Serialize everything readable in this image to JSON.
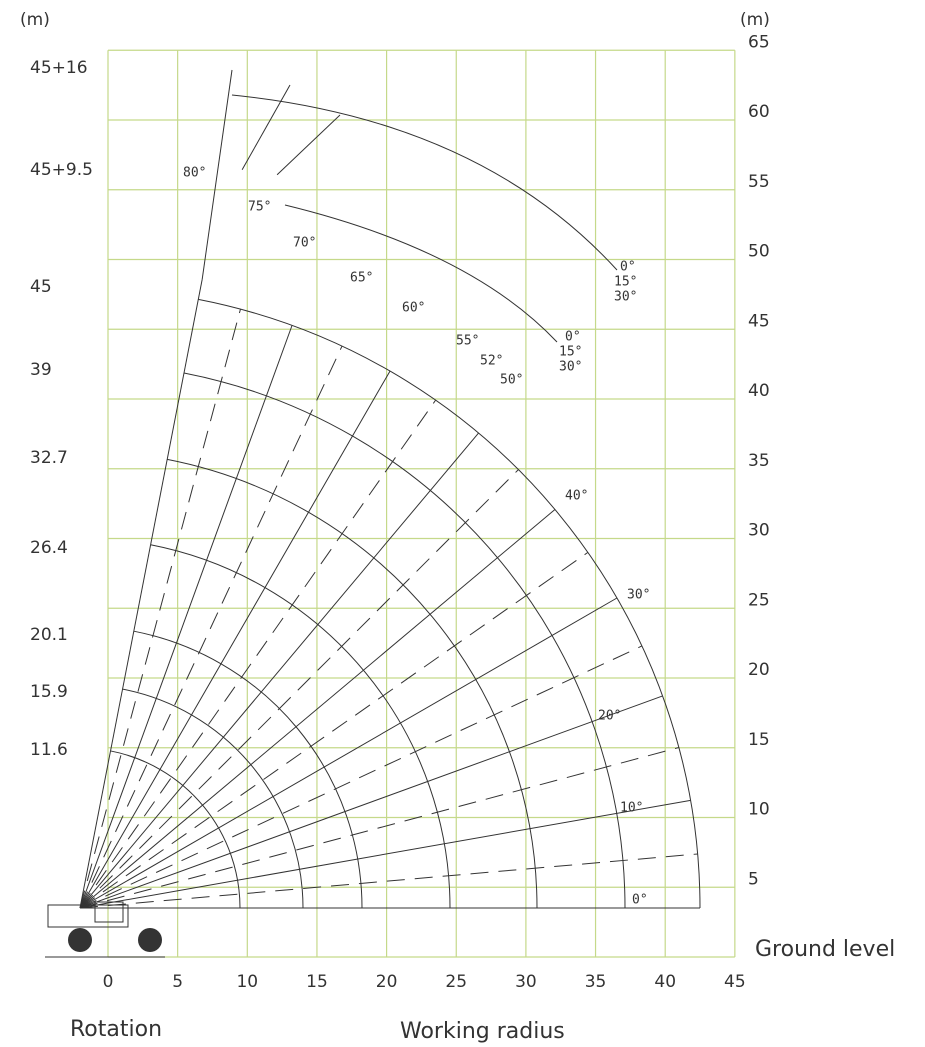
{
  "units": {
    "left": "(m)",
    "right": "(m)"
  },
  "x_axis": {
    "ticks": [
      0,
      5,
      10,
      15,
      20,
      25,
      30,
      35,
      40,
      45
    ],
    "title": "Working radius"
  },
  "y_axis": {
    "ticks": [
      5,
      10,
      15,
      20,
      25,
      30,
      35,
      40,
      45,
      50,
      55,
      60,
      65
    ],
    "ground_label": "Ground level"
  },
  "rotation_label": "Rotation",
  "boom_lengths": [
    "45+16",
    "45+9.5",
    "45",
    "39",
    "32.7",
    "26.4",
    "20.1",
    "15.9",
    "11.6"
  ],
  "boom_angles": [
    "0°",
    "10°",
    "20°",
    "30°",
    "40°"
  ],
  "jib_angles": [
    "80°",
    "75°",
    "70°",
    "65°",
    "60°",
    "55°",
    "52°",
    "50°"
  ],
  "jib_offsets_upper": [
    "0°",
    "15°",
    "30°"
  ],
  "jib_offsets_lower": [
    "0°",
    "15°",
    "30°"
  ]
}
